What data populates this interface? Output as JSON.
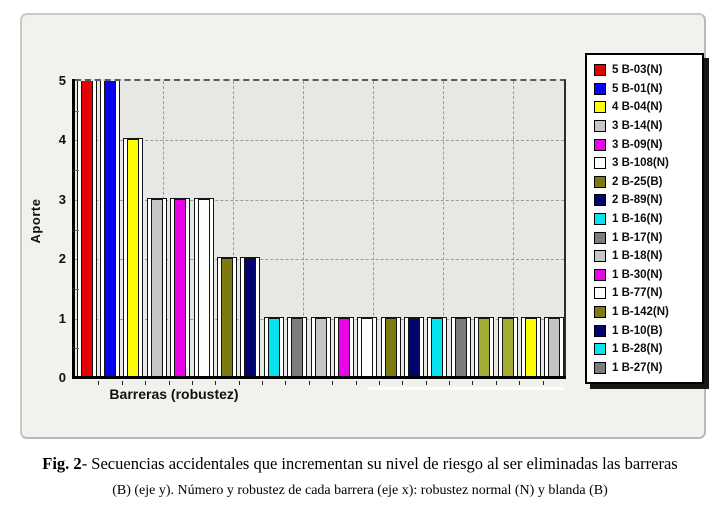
{
  "chart_data": {
    "type": "bar",
    "title": "",
    "xlabel": "Barreras (robustez)",
    "ylabel": "Aporte",
    "ylim": [
      0,
      5
    ],
    "yticks": [
      "0",
      "1",
      "2",
      "3",
      "4",
      "5"
    ],
    "grid": "dashed horizontal and vertical",
    "legend_position": "right",
    "bars": [
      {
        "legend_label": "5 B-03(N)",
        "value": 5,
        "color": "#e20404"
      },
      {
        "legend_label": "5 B-01(N)",
        "value": 5,
        "color": "#0404f0"
      },
      {
        "legend_label": "4 B-04(N)",
        "value": 4,
        "color": "#fcfc04"
      },
      {
        "legend_label": "3 B-14(N)",
        "value": 3,
        "color": "#c5c5c5"
      },
      {
        "legend_label": "3 B-09(N)",
        "value": 3,
        "color": "#e806e8"
      },
      {
        "legend_label": "3 B-108(N)",
        "value": 3,
        "color": "#fefefe"
      },
      {
        "legend_label": "2 B-25(B)",
        "value": 2,
        "color": "#7d7a10"
      },
      {
        "legend_label": "2 B-89(N)",
        "value": 2,
        "color": "#040470"
      },
      {
        "legend_label": "1 B-16(N)",
        "value": 1,
        "color": "#06e2ee"
      },
      {
        "legend_label": "1 B-17(N)",
        "value": 1,
        "color": "#7d7d7d"
      },
      {
        "legend_label": "1 B-18(N)",
        "value": 1,
        "color": "#c5c5c5"
      },
      {
        "legend_label": "1 B-30(N)",
        "value": 1,
        "color": "#e806e8"
      },
      {
        "legend_label": "1 B-77(N)",
        "value": 1,
        "color": "#fefefe"
      },
      {
        "legend_label": "1 B-142(N)",
        "value": 1,
        "color": "#7d7a10"
      },
      {
        "legend_label": "1 B-10(B)",
        "value": 1,
        "color": "#040470"
      },
      {
        "legend_label": "1 B-28(N)",
        "value": 1,
        "color": "#06e2ee"
      },
      {
        "legend_label": "1 B-27(N)",
        "value": 1,
        "color": "#7d7d7d"
      },
      {
        "legend_label": "",
        "value": 1,
        "color": "#a4ad33"
      },
      {
        "legend_label": "",
        "value": 1,
        "color": "#a4ad33"
      },
      {
        "legend_label": "",
        "value": 1,
        "color": "#fcfc04"
      },
      {
        "legend_label": "",
        "value": 1,
        "color": "#c5c5c5"
      }
    ]
  },
  "caption": {
    "fig_label": "Fig. 2",
    "line1_rest": "- Secuencias accidentales que incrementan su nivel de riesgo al ser eliminadas las barreras",
    "line2": "(B) (eje y). Número y robustez de cada barrera (eje x): robustez normal (N) y blanda (B)"
  }
}
